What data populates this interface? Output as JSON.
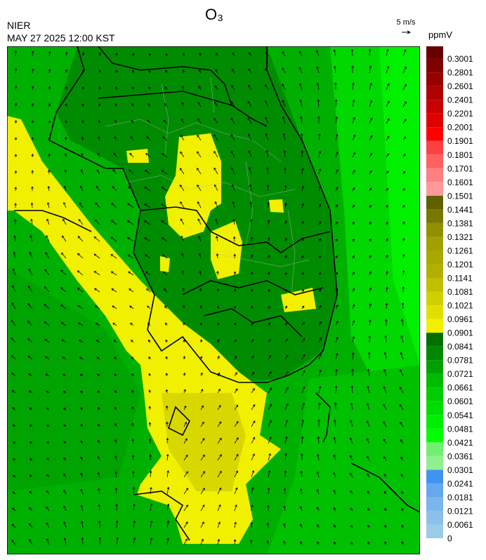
{
  "header": {
    "title": "O₃",
    "agency": "NIER",
    "datetime": "MAY 27 2025 12:00 KST"
  },
  "wind_scale": {
    "label": "5 m/s"
  },
  "colorbar": {
    "unit": "ppmV",
    "ticks": [
      0,
      0.0061,
      0.0121,
      0.0181,
      0.0241,
      0.0301,
      0.0361,
      0.0421,
      0.0481,
      0.0541,
      0.0601,
      0.0661,
      0.0721,
      0.0781,
      0.0841,
      0.0901,
      0.0961,
      0.1021,
      0.1081,
      0.1141,
      0.1201,
      0.1261,
      0.1321,
      0.1381,
      0.1441,
      0.1501,
      0.1601,
      0.1701,
      0.1801,
      0.1901,
      0.2001,
      0.2201,
      0.2401,
      0.2601,
      0.2801,
      0.3001
    ],
    "colors": [
      "#9ccbe8",
      "#8ac0ea",
      "#7ab5ec",
      "#64a8ee",
      "#3f94f0",
      "#90f090",
      "#70f070",
      "#00ff00",
      "#00ee00",
      "#00dd00",
      "#00cc00",
      "#00bb00",
      "#00a000",
      "#008800",
      "#007000",
      "#f0f000",
      "#e0e000",
      "#d0d000",
      "#c0c000",
      "#b0b000",
      "#a8a800",
      "#a0a000",
      "#909000",
      "#787800",
      "#606000",
      "#ff9898",
      "#ff8080",
      "#ff6060",
      "#ff4040",
      "#ff0000",
      "#e00000",
      "#c80000",
      "#b00000",
      "#980000",
      "#800000",
      "#680000"
    ]
  }
}
